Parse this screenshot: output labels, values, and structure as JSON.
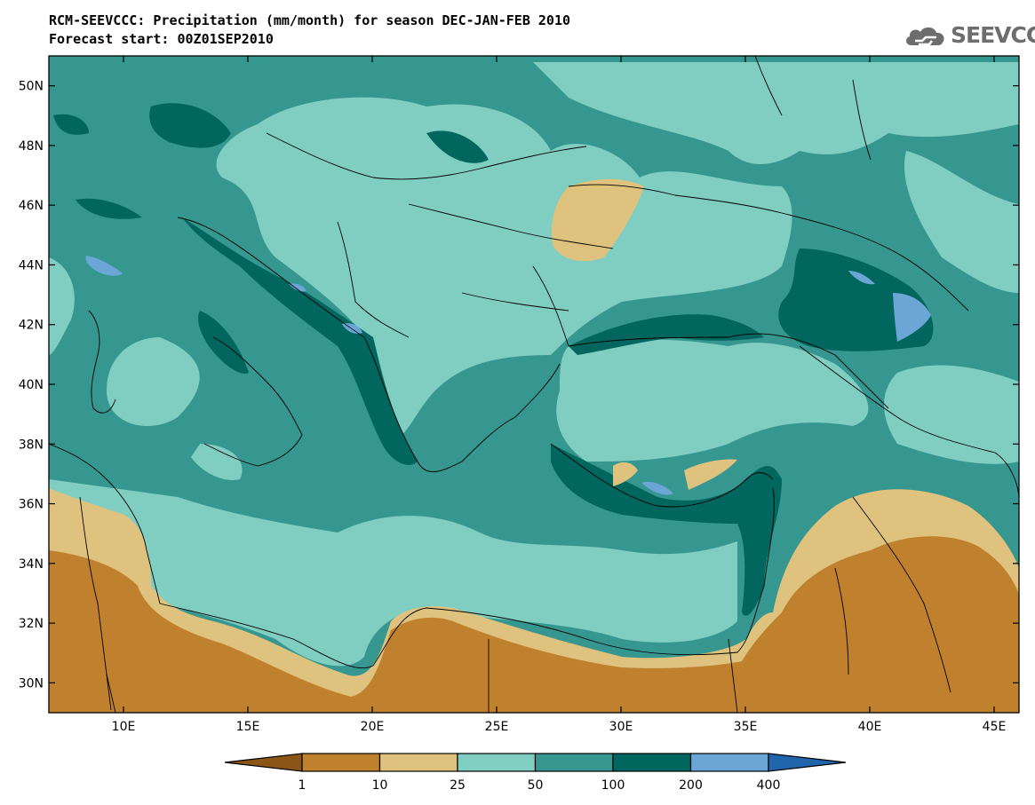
{
  "header": {
    "title_line1": "RCM-SEEVCCC: Precipitation (mm/month) for season DEC-JAN-FEB 2010",
    "title_line2": "Forecast start: 00Z01SEP2010",
    "logo_text": "SEEVCCC"
  },
  "map": {
    "lat_labels": [
      "50N",
      "48N",
      "46N",
      "44N",
      "42N",
      "40N",
      "38N",
      "36N",
      "34N",
      "32N",
      "30N"
    ],
    "lon_labels": [
      "10E",
      "15E",
      "20E",
      "25E",
      "30E",
      "35E",
      "40E",
      "45E"
    ],
    "lat_range": [
      29,
      51
    ],
    "lon_range": [
      7,
      46
    ]
  },
  "legend": {
    "labels": [
      "1",
      "10",
      "25",
      "50",
      "100",
      "200",
      "400"
    ],
    "colors": [
      "#8c5518",
      "#bf812d",
      "#dfc27d",
      "#80cdc1",
      "#35978f",
      "#01665e",
      "#6ba6d6",
      "#2166ac"
    ]
  }
}
